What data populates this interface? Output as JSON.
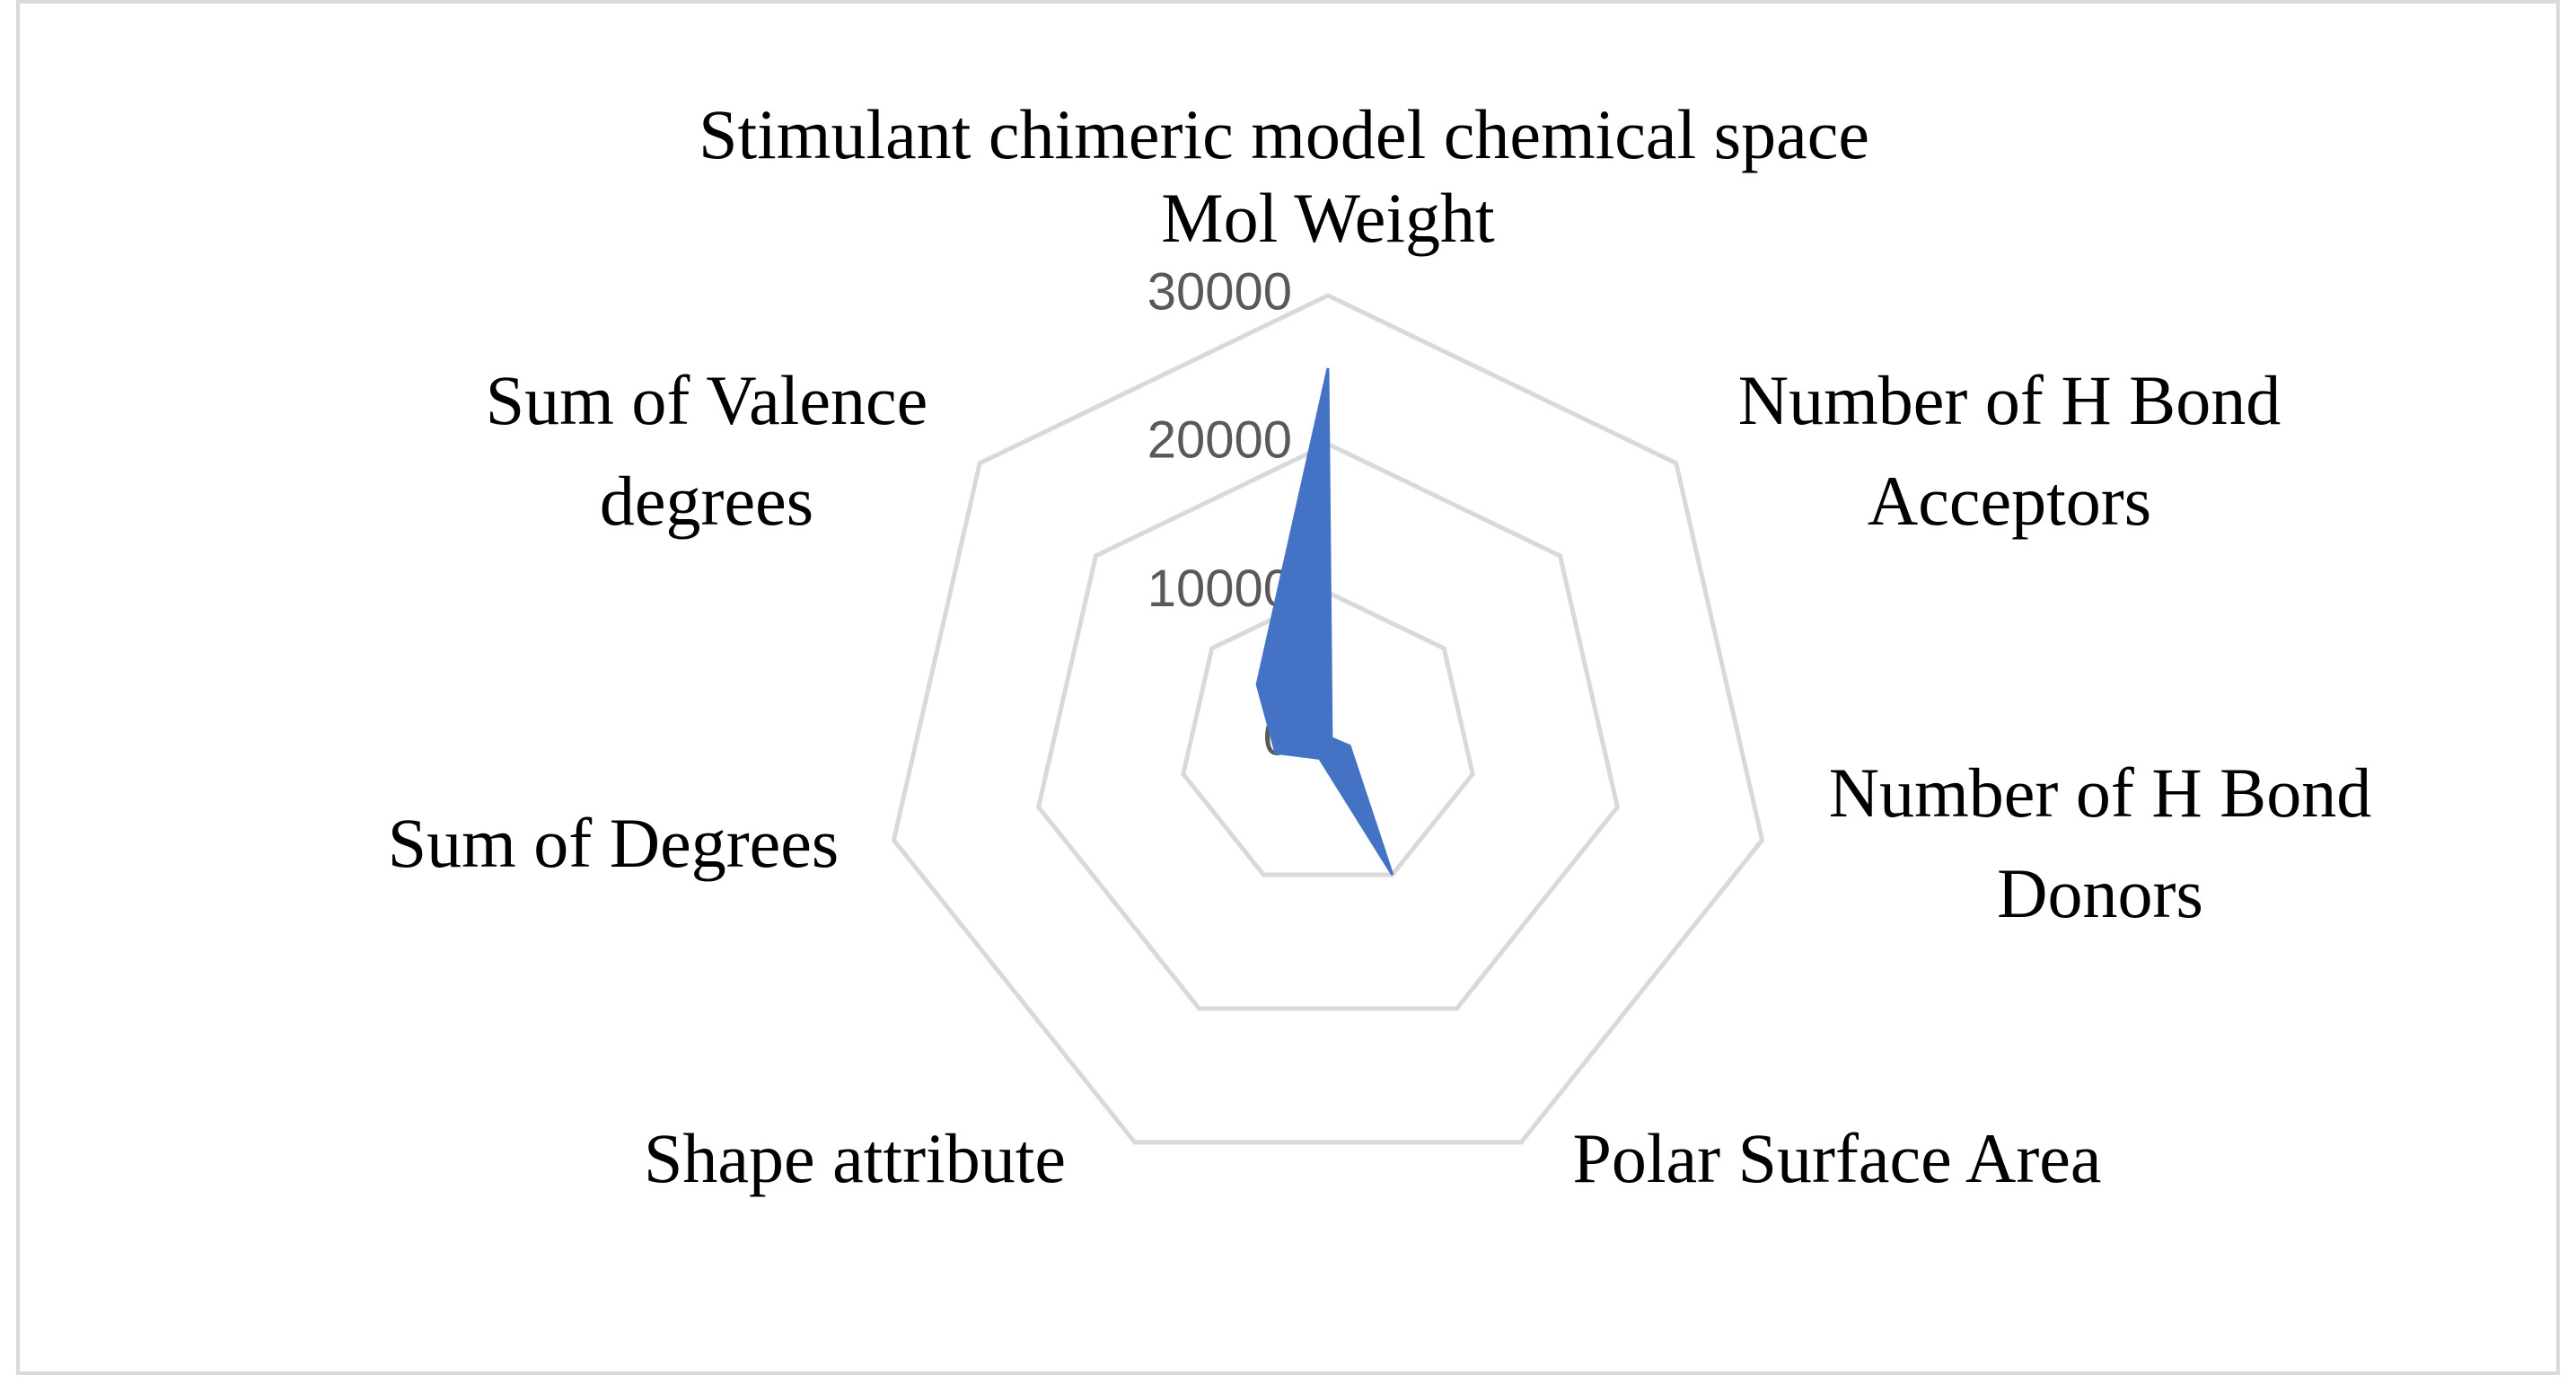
{
  "chart_data": {
    "type": "radar",
    "title": "Stimulant chimeric model chemical space",
    "categories": [
      "Mol Weight",
      "Number of H Bond Acceptors",
      "Number of H Bond Donors",
      "Polar Surface Area",
      "Shape attribute",
      "Sum of Degrees",
      "Sum of Valence degrees"
    ],
    "series": [
      {
        "name": "Stimulant chimeric model",
        "color": "#4472c4",
        "values": [
          25100,
          300,
          1500,
          10000,
          1300,
          3600,
          6100
        ]
      }
    ],
    "ylim": [
      0,
      30000
    ],
    "yticks": [
      0,
      10000,
      20000,
      30000
    ],
    "grid": true,
    "grid_color": "#d9d9d9"
  }
}
